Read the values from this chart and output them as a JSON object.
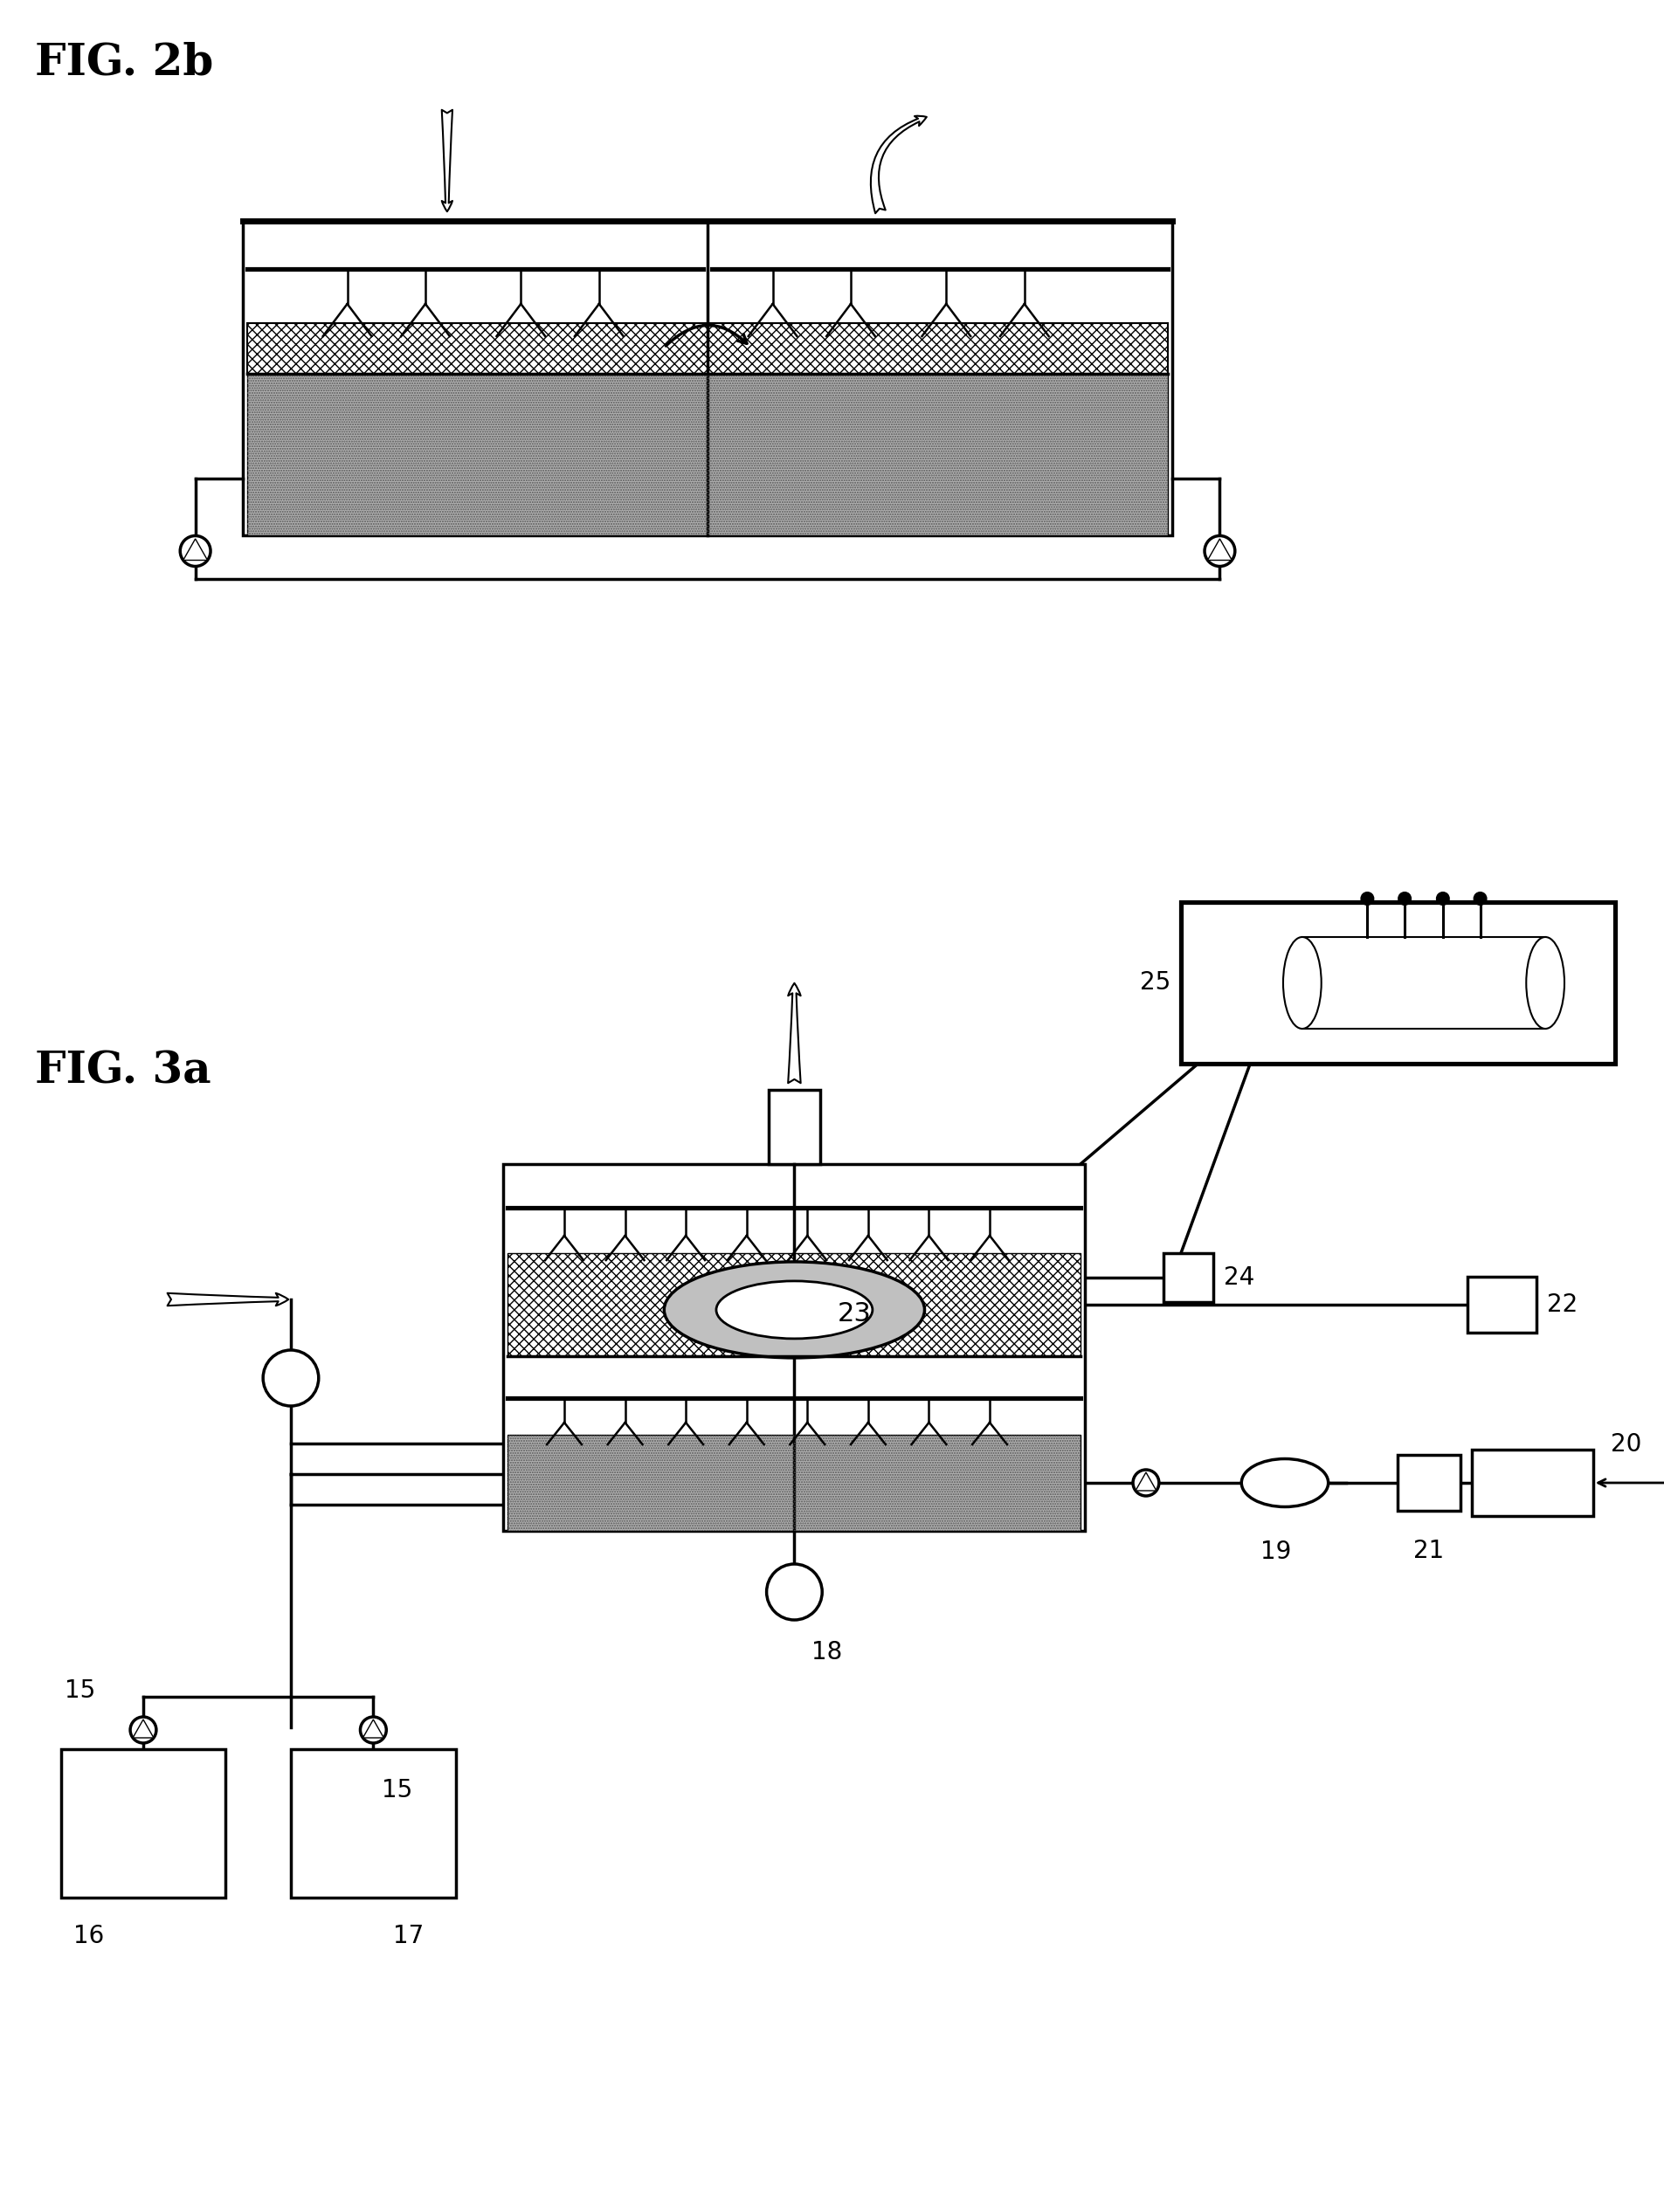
{
  "fig2b_title": "FIG. 2b",
  "fig3a_title": "FIG. 3a",
  "background": "#ffffff",
  "line_color": "#000000",
  "label_25": "25",
  "label_24": "24",
  "label_23": "23",
  "label_22": "22",
  "label_21": "21",
  "label_20": "20",
  "label_19": "19",
  "label_18": "18",
  "label_17": "17",
  "label_16": "16",
  "label_15a": "15",
  "label_15b": "15"
}
